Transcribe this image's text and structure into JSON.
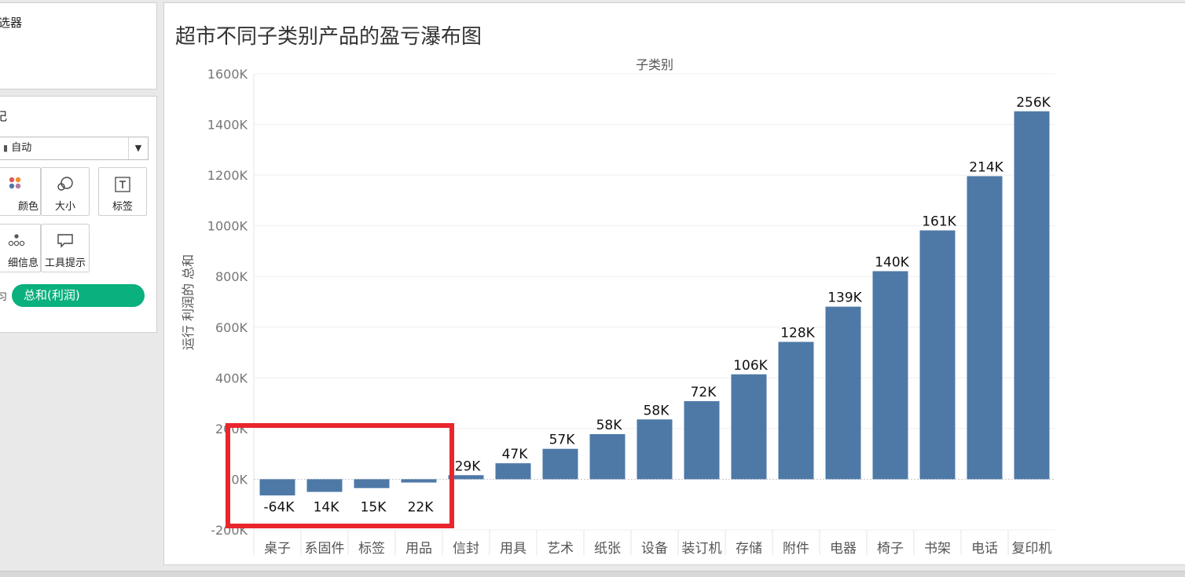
{
  "sidebar": {
    "filters_title": "选器",
    "marks_title": "记",
    "mark_type": "自动",
    "buttons": {
      "color": "颜色",
      "size": "大小",
      "label": "标签",
      "detail": "细信息",
      "tooltip": "工具提示"
    },
    "pill_prefix": "习",
    "pill_text": "总和(利润)",
    "pill_color": "#0ab07d"
  },
  "chart_data": {
    "type": "bar",
    "title": "超市不同子类别产品的盈亏瀑布图",
    "xlabel": "子类别",
    "ylabel": "运行 利润的 总和",
    "categories": [
      "桌子",
      "系固件",
      "标签",
      "用品",
      "信封",
      "用具",
      "艺术",
      "纸张",
      "设备",
      "装订机",
      "存储",
      "附件",
      "电器",
      "椅子",
      "书架",
      "电话",
      "复印机"
    ],
    "values": [
      -64000,
      -50000,
      -35000,
      -13000,
      16000,
      63000,
      120000,
      178000,
      236000,
      308000,
      414000,
      542000,
      681000,
      821000,
      982000,
      1196000,
      1452000
    ],
    "data_labels": [
      "-64K",
      "14K",
      "15K",
      "22K",
      "29K",
      "47K",
      "57K",
      "58K",
      "58K",
      "72K",
      "106K",
      "128K",
      "139K",
      "140K",
      "161K",
      "214K",
      "256K"
    ],
    "ylim": [
      -200000,
      1600000
    ],
    "yticks": [
      -200000,
      0,
      200000,
      400000,
      600000,
      800000,
      1000000,
      1200000,
      1400000,
      1600000
    ],
    "ytick_labels": [
      "-200K",
      "0K",
      "200K",
      "400K",
      "600K",
      "800K",
      "1000K",
      "1200K",
      "1400K",
      "1600K"
    ],
    "grid": true,
    "bar_color": "#4e79a7",
    "highlight_color": "#e8262c",
    "highlighted_categories": [
      "桌子",
      "系固件",
      "标签",
      "用品"
    ]
  }
}
